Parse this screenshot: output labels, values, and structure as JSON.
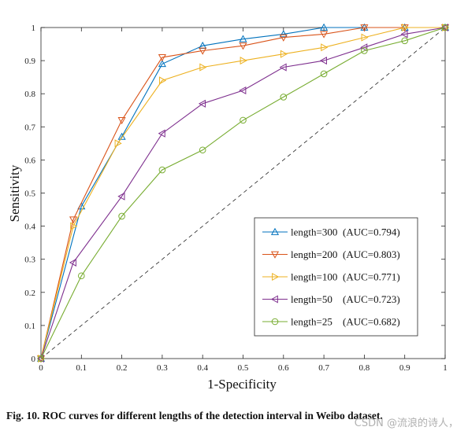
{
  "chart_data": {
    "type": "line",
    "xlabel": "1-Specificity",
    "ylabel": "Sensitivity",
    "xlim": [
      0,
      1
    ],
    "ylim": [
      0,
      1
    ],
    "xticks": [
      "0",
      "0.1",
      "0.2",
      "0.3",
      "0.4",
      "0.5",
      "0.6",
      "0.7",
      "0.8",
      "0.9",
      "1"
    ],
    "yticks": [
      "0",
      "0.1",
      "0.2",
      "0.3",
      "0.4",
      "0.5",
      "0.6",
      "0.7",
      "0.8",
      "0.9",
      "1"
    ],
    "grid": false,
    "legend_position": "bottom-right",
    "diagonal_reference": true,
    "series": [
      {
        "name": "length=300 (AUC=0.794)",
        "color": "#0072BD",
        "marker": "triangle-up",
        "x": [
          0,
          0.1,
          0.2,
          0.3,
          0.4,
          0.5,
          0.6,
          0.7,
          0.8,
          0.9,
          1
        ],
        "y": [
          0,
          0.46,
          0.67,
          0.89,
          0.945,
          0.965,
          0.98,
          1.0,
          1.0,
          1.0,
          1.0
        ]
      },
      {
        "name": "length=200 (AUC=0.803)",
        "color": "#D95319",
        "marker": "triangle-down",
        "x": [
          0,
          0.08,
          0.2,
          0.3,
          0.4,
          0.5,
          0.6,
          0.7,
          0.8,
          0.9,
          1
        ],
        "y": [
          0,
          0.42,
          0.72,
          0.91,
          0.93,
          0.945,
          0.97,
          0.98,
          1.0,
          1.0,
          1.0
        ]
      },
      {
        "name": "length=100 (AUC=0.771)",
        "color": "#EDB120",
        "marker": "triangle-right",
        "x": [
          0,
          0.08,
          0.19,
          0.3,
          0.4,
          0.5,
          0.6,
          0.7,
          0.8,
          0.9,
          1
        ],
        "y": [
          0,
          0.4,
          0.65,
          0.84,
          0.88,
          0.9,
          0.92,
          0.94,
          0.97,
          1.0,
          1.0
        ]
      },
      {
        "name": "length=50 (AUC=0.723)",
        "color": "#7E2F8E",
        "marker": "triangle-left",
        "x": [
          0,
          0.08,
          0.2,
          0.3,
          0.4,
          0.5,
          0.6,
          0.7,
          0.8,
          0.9,
          1
        ],
        "y": [
          0,
          0.29,
          0.49,
          0.68,
          0.77,
          0.81,
          0.88,
          0.9,
          0.94,
          0.98,
          1.0
        ]
      },
      {
        "name": "length=25 (AUC=0.682)",
        "color": "#77AC30",
        "marker": "circle",
        "x": [
          0,
          0.1,
          0.2,
          0.3,
          0.4,
          0.5,
          0.6,
          0.7,
          0.8,
          0.9,
          1
        ],
        "y": [
          0,
          0.25,
          0.43,
          0.57,
          0.63,
          0.72,
          0.79,
          0.86,
          0.93,
          0.96,
          1.0
        ]
      }
    ],
    "legend": [
      {
        "label": "length=300",
        "auc": "(AUC=0.794)"
      },
      {
        "label": "length=200",
        "auc": "(AUC=0.803)"
      },
      {
        "label": "length=100",
        "auc": "(AUC=0.771)"
      },
      {
        "label": "length=50",
        "auc": "(AUC=0.723)"
      },
      {
        "label": "length=25",
        "auc": "(AUC=0.682)"
      }
    ]
  },
  "caption": {
    "fig_label": "Fig. 10.",
    "text": "ROC curves for different lengths of the detection interval in Weibo dataset."
  },
  "watermark": "CSDN @流浪的诗人，"
}
